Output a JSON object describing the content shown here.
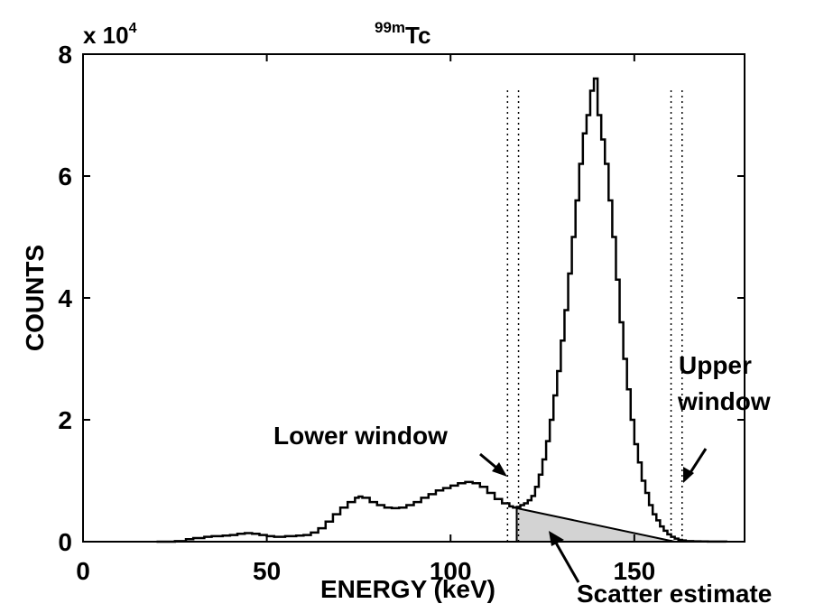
{
  "chart_data": {
    "type": "line",
    "title_prefix_sup": "99m",
    "title_main": "Tc",
    "exponent_base": "x 10",
    "exponent_power": "4",
    "xlabel": "ENERGY (keV)",
    "ylabel": "COUNTS",
    "xlim": [
      0,
      180
    ],
    "ylim": [
      0,
      80000
    ],
    "xticks": [
      0,
      50,
      100,
      150
    ],
    "yticks": [
      0,
      2,
      4,
      6,
      8
    ],
    "xtick_labels": [
      "0",
      "50",
      "100",
      "150"
    ],
    "ytick_labels": [
      "0",
      "2",
      "4",
      "6",
      "8"
    ],
    "grid": false,
    "series": [
      {
        "x": [
          20,
          25,
          28,
          30,
          33,
          35,
          38,
          40,
          42,
          44,
          46,
          48,
          50,
          52,
          55,
          58,
          60,
          62,
          64,
          66,
          68,
          70,
          72,
          74,
          75,
          76,
          78,
          80,
          82,
          84,
          86,
          88,
          90,
          92,
          94,
          96,
          98,
          100,
          102,
          104,
          106,
          108,
          110,
          112,
          114,
          116,
          117,
          118,
          119,
          120,
          121,
          122,
          123,
          124,
          125,
          126,
          127,
          128,
          129,
          130,
          131,
          132,
          133,
          134,
          135,
          136,
          137,
          138,
          139,
          140,
          141,
          142,
          143,
          144,
          145,
          146,
          147,
          148,
          149,
          150,
          151,
          152,
          153,
          154,
          155,
          156,
          157,
          158,
          159,
          160,
          161,
          162,
          163,
          164,
          166,
          168,
          170,
          175
        ],
        "y": [
          0,
          100,
          400,
          600,
          800,
          900,
          1000,
          1100,
          1300,
          1400,
          1300,
          1100,
          900,
          800,
          900,
          1000,
          1100,
          1500,
          2200,
          3300,
          4500,
          5600,
          6500,
          7200,
          7400,
          7200,
          6500,
          6000,
          5600,
          5500,
          5600,
          6000,
          6500,
          7200,
          7800,
          8400,
          8800,
          9200,
          9600,
          9800,
          9600,
          9000,
          8000,
          7000,
          6300,
          5800,
          5600,
          5700,
          6000,
          6300,
          6800,
          7500,
          9000,
          11000,
          13500,
          16500,
          20000,
          24000,
          28000,
          33000,
          38000,
          44000,
          50000,
          56000,
          62000,
          67000,
          70000,
          74000,
          76000,
          70000,
          66000,
          62000,
          56000,
          50000,
          43000,
          36000,
          30000,
          25000,
          20000,
          16000,
          13000,
          10000,
          8000,
          6000,
          4500,
          3500,
          2500,
          1800,
          1200,
          800,
          500,
          300,
          200,
          100,
          60,
          30,
          10,
          0
        ]
      }
    ],
    "scatter_estimate": {
      "x": [
        118,
        118,
        161
      ],
      "y": [
        0,
        5500,
        0
      ]
    },
    "window_lines": [
      {
        "x": 115.5
      },
      {
        "x": 118.5
      },
      {
        "x": 160
      },
      {
        "x": 163
      }
    ],
    "annotations": {
      "lower_window": "Lower window",
      "upper_window_line1": "Upper",
      "upper_window_line2": "window",
      "scatter_estimate": "Scatter estimate"
    }
  }
}
